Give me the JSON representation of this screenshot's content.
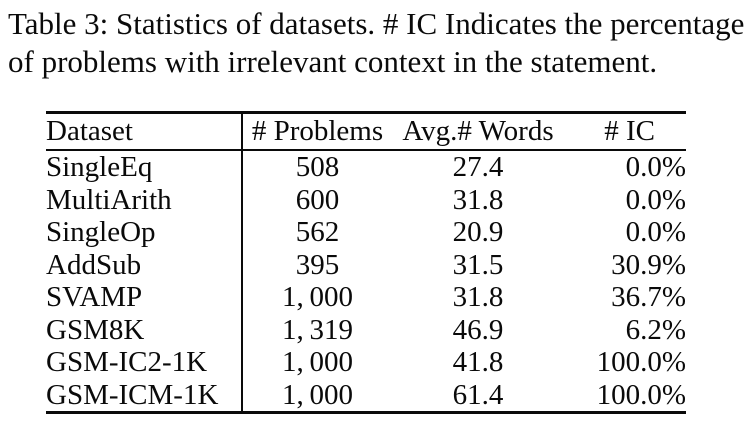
{
  "caption": {
    "line1": "Table 3: Statistics of datasets. # IC Indicates the percentage",
    "line2": "of problems with irrelevant context in the statement."
  },
  "table": {
    "headers": [
      "Dataset",
      "# Problems",
      "Avg.# Words",
      "# IC"
    ],
    "rows": [
      {
        "dataset": "SingleEq",
        "problems": "508",
        "avg_words": "27.4",
        "ic": "0.0%"
      },
      {
        "dataset": "MultiArith",
        "problems": "600",
        "avg_words": "31.8",
        "ic": "0.0%"
      },
      {
        "dataset": "SingleOp",
        "problems": "562",
        "avg_words": "20.9",
        "ic": "0.0%"
      },
      {
        "dataset": "AddSub",
        "problems": "395",
        "avg_words": "31.5",
        "ic": "30.9%"
      },
      {
        "dataset": "SVAMP",
        "problems": "1, 000",
        "avg_words": "31.8",
        "ic": "36.7%"
      },
      {
        "dataset": "GSM8K",
        "problems": "1, 319",
        "avg_words": "46.9",
        "ic": "6.2%"
      },
      {
        "dataset": "GSM-IC2-1K",
        "problems": "1, 000",
        "avg_words": "41.8",
        "ic": "100.0%"
      },
      {
        "dataset": "GSM-ICM-1K",
        "problems": "1, 000",
        "avg_words": "61.4",
        "ic": "100.0%"
      }
    ]
  },
  "colors": {
    "text": "#0a0a0a",
    "background": "#ffffff",
    "rule": "#0a0a0a"
  }
}
